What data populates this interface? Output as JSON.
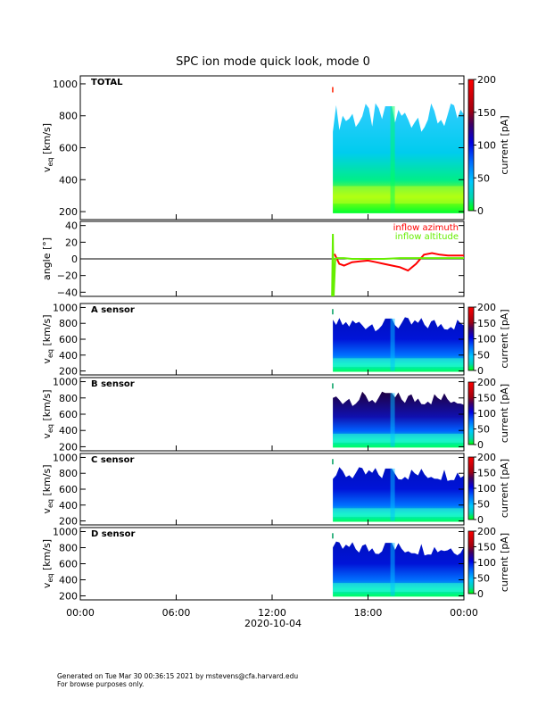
{
  "title": "SPC ion mode quick look, mode 0",
  "footer": {
    "line1": "Generated on Tue Mar 30 00:36:15 2021 by mstevens@cfa.harvard.edu",
    "line2": "For browse purposes only."
  },
  "colors": {
    "azimuth": "#ff0000",
    "altitude": "#66ee00"
  },
  "chart_data": [
    {
      "type": "heatmap",
      "panel_label": "TOTAL",
      "ylabel_main": "v",
      "ylabel_sub": "eq",
      "ylabel_rest": " [km/s]",
      "yticks": [
        "200",
        "400",
        "600",
        "800",
        "1000"
      ],
      "ylim": [
        150,
        1050
      ],
      "colorbar": {
        "label": "current [pA]",
        "ticks": [
          "0",
          "50",
          "100",
          "150",
          "200"
        ],
        "range": [
          0,
          200
        ]
      },
      "data_start_hour": 15.8
    },
    {
      "type": "line",
      "ylabel": "angle [°]",
      "yticks": [
        "−40",
        "−20",
        "0",
        "20",
        "40"
      ],
      "ylim": [
        -45,
        45
      ],
      "series": [
        {
          "name": "inflow azimuth",
          "color": "#ff0000",
          "x": [
            15.9,
            16.0,
            16.2,
            16.5,
            17.0,
            17.5,
            18.0,
            18.5,
            19.0,
            19.5,
            20.0,
            20.5,
            21.0,
            21.5,
            22.0,
            22.5,
            23.0,
            23.5,
            24.0
          ],
          "y": [
            6,
            2,
            -6,
            -8,
            -4,
            -3,
            -2,
            -4,
            -6,
            -8,
            -10,
            -14,
            -6,
            5,
            7,
            5,
            4,
            4,
            4
          ]
        },
        {
          "name": "inflow altitude",
          "color": "#66ee00",
          "x": [
            15.75,
            15.8,
            15.85,
            15.95,
            16.1,
            16.5,
            17.0,
            18.0,
            19.0,
            20.0,
            21.0,
            22.0,
            23.0,
            24.0
          ],
          "y": [
            -45,
            30,
            -45,
            0,
            1,
            1,
            0,
            0,
            0,
            1,
            1,
            1,
            1,
            1
          ]
        }
      ]
    },
    {
      "type": "heatmap",
      "panel_label": "A sensor",
      "ylabel_main": "v",
      "ylabel_sub": "eq",
      "ylabel_rest": " [km/s]",
      "yticks": [
        "200",
        "400",
        "600",
        "800",
        "1000"
      ],
      "ylim": [
        150,
        1050
      ],
      "colorbar": {
        "label": "current [pA]",
        "ticks": [
          "0",
          "50",
          "100",
          "150",
          "200"
        ],
        "range": [
          0,
          200
        ]
      },
      "data_start_hour": 15.8
    },
    {
      "type": "heatmap",
      "panel_label": "B sensor",
      "ylabel_main": "v",
      "ylabel_sub": "eq",
      "ylabel_rest": " [km/s]",
      "yticks": [
        "200",
        "400",
        "600",
        "800",
        "1000"
      ],
      "ylim": [
        150,
        1050
      ],
      "colorbar": {
        "label": "current [pA]",
        "ticks": [
          "0",
          "50",
          "100",
          "150",
          "200"
        ],
        "range": [
          0,
          200
        ]
      },
      "data_start_hour": 15.8
    },
    {
      "type": "heatmap",
      "panel_label": "C sensor",
      "ylabel_main": "v",
      "ylabel_sub": "eq",
      "ylabel_rest": " [km/s]",
      "yticks": [
        "200",
        "400",
        "600",
        "800",
        "1000"
      ],
      "ylim": [
        150,
        1050
      ],
      "colorbar": {
        "label": "current [pA]",
        "ticks": [
          "0",
          "50",
          "100",
          "150",
          "200"
        ],
        "range": [
          0,
          200
        ]
      },
      "data_start_hour": 15.8
    },
    {
      "type": "heatmap",
      "panel_label": "D sensor",
      "ylabel_main": "v",
      "ylabel_sub": "eq",
      "ylabel_rest": " [km/s]",
      "yticks": [
        "200",
        "400",
        "600",
        "800",
        "1000"
      ],
      "ylim": [
        150,
        1050
      ],
      "colorbar": {
        "label": "current [pA]",
        "ticks": [
          "0",
          "50",
          "100",
          "150",
          "200"
        ],
        "range": [
          0,
          200
        ]
      },
      "data_start_hour": 15.8
    }
  ],
  "xaxis": {
    "ticks": [
      "00:00",
      "06:00",
      "12:00",
      "18:00",
      "00:00"
    ],
    "tick_hours": [
      0,
      6,
      12,
      18,
      24
    ],
    "date_label": "2020-10-04"
  }
}
